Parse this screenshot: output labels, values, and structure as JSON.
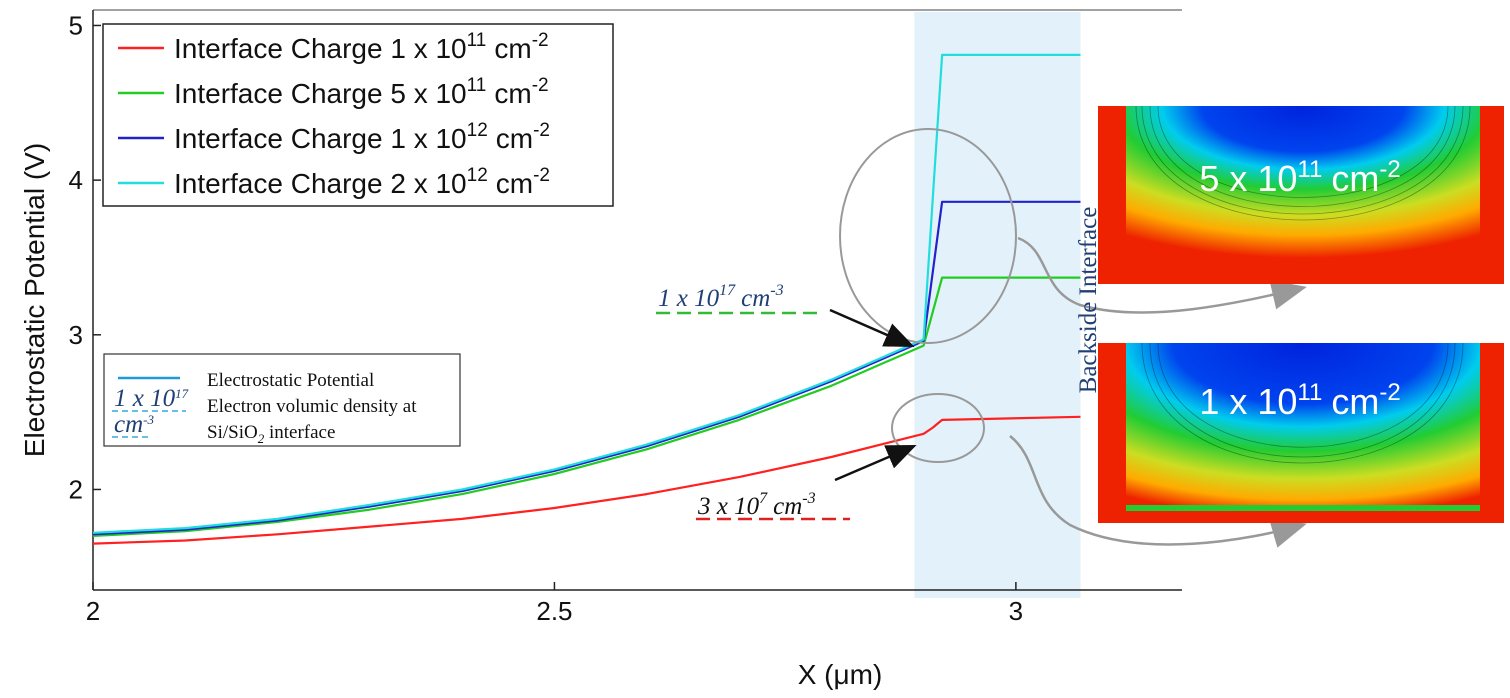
{
  "chart_data": {
    "type": "line",
    "xlabel": "X (μm)",
    "ylabel": "Electrostatic Potential (V)",
    "xlim": [
      2.0,
      3.18
    ],
    "ylim": [
      1.35,
      5.1
    ],
    "x_ticks": [
      "2",
      "2.5",
      "3"
    ],
    "y_ticks": [
      "2",
      "3",
      "4",
      "5"
    ],
    "grid": false,
    "legend_position": "top-left",
    "legend_prefix": "Interface Charge",
    "highlight_region_x": [
      2.89,
      3.07
    ],
    "series": [
      {
        "name": "Interface Charge 1 x 10^11 cm^-2",
        "base": "1 x 10",
        "exp": "11",
        "unit": "cm",
        "unit_exp": "-2",
        "color": "#ff2020",
        "x": [
          2.0,
          2.1,
          2.2,
          2.3,
          2.4,
          2.5,
          2.6,
          2.7,
          2.8,
          2.9,
          2.91,
          2.92,
          3.07
        ],
        "y": [
          1.65,
          1.67,
          1.71,
          1.76,
          1.81,
          1.88,
          1.97,
          2.08,
          2.21,
          2.36,
          2.4,
          2.45,
          2.47
        ]
      },
      {
        "name": "Interface Charge 5 x 10^11 cm^-2",
        "base": "5 x 10",
        "exp": "11",
        "unit": "cm",
        "unit_exp": "-2",
        "color": "#22cc22",
        "x": [
          2.0,
          2.1,
          2.2,
          2.3,
          2.4,
          2.5,
          2.6,
          2.7,
          2.8,
          2.9,
          2.92,
          3.07
        ],
        "y": [
          1.7,
          1.73,
          1.79,
          1.87,
          1.97,
          2.1,
          2.26,
          2.45,
          2.67,
          2.93,
          3.37,
          3.37
        ]
      },
      {
        "name": "Interface Charge 1 x 10^12 cm^-2",
        "base": "1 x 10",
        "exp": "12",
        "unit": "cm",
        "unit_exp": "-2",
        "color": "#2222cc",
        "x": [
          2.0,
          2.1,
          2.2,
          2.3,
          2.4,
          2.5,
          2.6,
          2.7,
          2.8,
          2.9,
          2.92,
          3.07
        ],
        "y": [
          1.71,
          1.74,
          1.8,
          1.89,
          1.99,
          2.12,
          2.28,
          2.47,
          2.7,
          2.96,
          3.86,
          3.86
        ]
      },
      {
        "name": "Interface Charge 2 x 10^12 cm^-2",
        "base": "2 x 10",
        "exp": "12",
        "unit": "cm",
        "unit_exp": "-2",
        "color": "#22dddd",
        "x": [
          2.0,
          2.1,
          2.2,
          2.3,
          2.4,
          2.5,
          2.6,
          2.7,
          2.8,
          2.9,
          2.92,
          3.07
        ],
        "y": [
          1.72,
          1.75,
          1.81,
          1.9,
          2.0,
          2.13,
          2.29,
          2.48,
          2.71,
          2.97,
          4.81,
          4.81
        ]
      }
    ],
    "annotations": {
      "high_density": {
        "base": "1 x 10",
        "exp": "17",
        "unit": "cm",
        "unit_exp": "-3",
        "color": "#1f3f77",
        "underline_color": "#33bb33"
      },
      "low_density": {
        "base": "3 x 10",
        "exp": "7",
        "unit": "cm",
        "unit_exp": "-3",
        "color": "#111111",
        "underline_color": "#dd2222"
      },
      "backside": "Backside Interface"
    },
    "inset_legend": {
      "line_label": "Electrostatic Potential",
      "density_base": "1 x 10",
      "density_exp": "17",
      "density_unit": "cm",
      "density_unit_exp": "-3",
      "density_label_1": "Electron volumic density at",
      "density_label_2a": "Si/SiO",
      "density_label_sub": "2",
      "density_label_2b": " interface"
    },
    "contour_maps": [
      {
        "base": "5 x 10",
        "exp": "11",
        "unit": "cm",
        "unit_exp": "-2"
      },
      {
        "base": "1 x 10",
        "exp": "11",
        "unit": "cm",
        "unit_exp": "-2"
      }
    ]
  }
}
